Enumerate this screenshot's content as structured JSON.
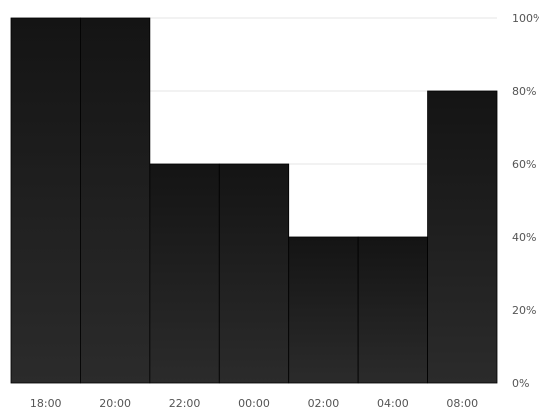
{
  "chart_data": {
    "type": "bar",
    "categories": [
      "18:00",
      "20:00",
      "22:00",
      "00:00",
      "02:00",
      "04:00",
      "08:00"
    ],
    "values": [
      100,
      100,
      60,
      60,
      40,
      40,
      80
    ],
    "y_ticks": [
      "0%",
      "20%",
      "40%",
      "60%",
      "80%",
      "100%"
    ],
    "ylim": [
      0,
      100
    ],
    "y_axis_position": "right",
    "grid": true,
    "title": "",
    "xlabel": "",
    "ylabel": "",
    "colors": {
      "bar_top": "#141414",
      "bar_bottom": "#2b2b2b",
      "bar_edge": "#000000",
      "grid": "#e6e6e6",
      "tick_text": "#555555"
    }
  }
}
